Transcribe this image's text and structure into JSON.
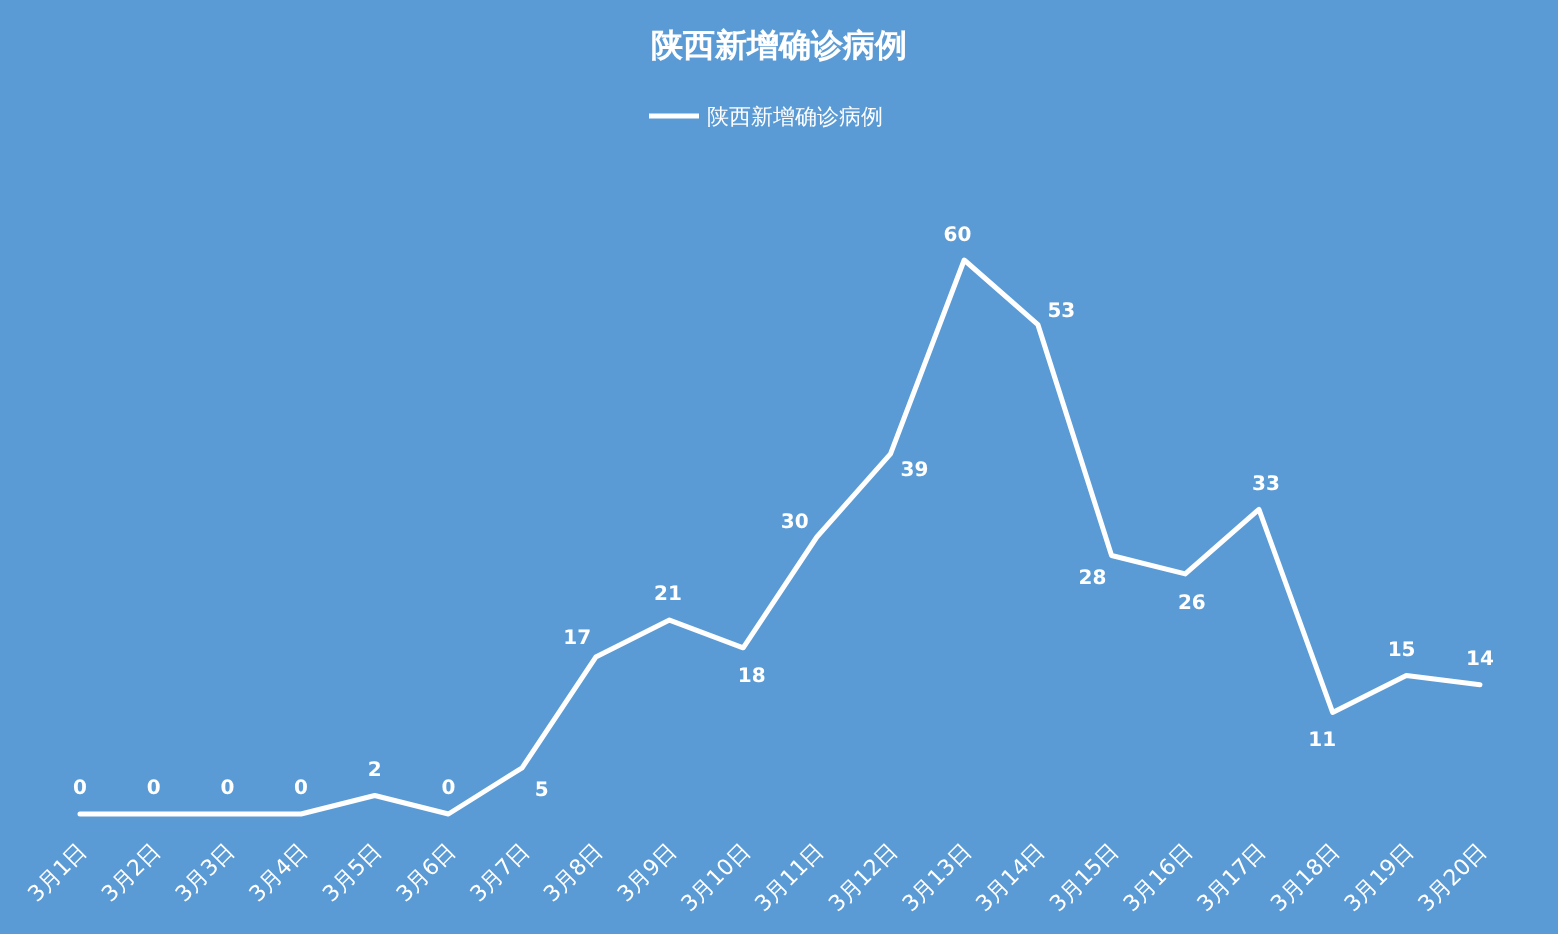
{
  "chart_data": {
    "type": "line",
    "title": "陕西新增确诊病例",
    "categories": [
      "3月1日",
      "3月2日",
      "3月3日",
      "3月4日",
      "3月5日",
      "3月6日",
      "3月7日",
      "3月8日",
      "3月9日",
      "3月10日",
      "3月11日",
      "3月12日",
      "3月13日",
      "3月14日",
      "3月15日",
      "3月16日",
      "3月17日",
      "3月18日",
      "3月19日",
      "3月20日"
    ],
    "series": [
      {
        "name": "陕西新增确诊病例",
        "color": "#ffffff",
        "values": [
          0,
          0,
          0,
          0,
          2,
          0,
          5,
          17,
          21,
          18,
          30,
          39,
          60,
          53,
          28,
          26,
          33,
          11,
          15,
          14
        ]
      }
    ],
    "data_labels": true,
    "legend": "top",
    "marker": "none",
    "line_style": "solid"
  }
}
